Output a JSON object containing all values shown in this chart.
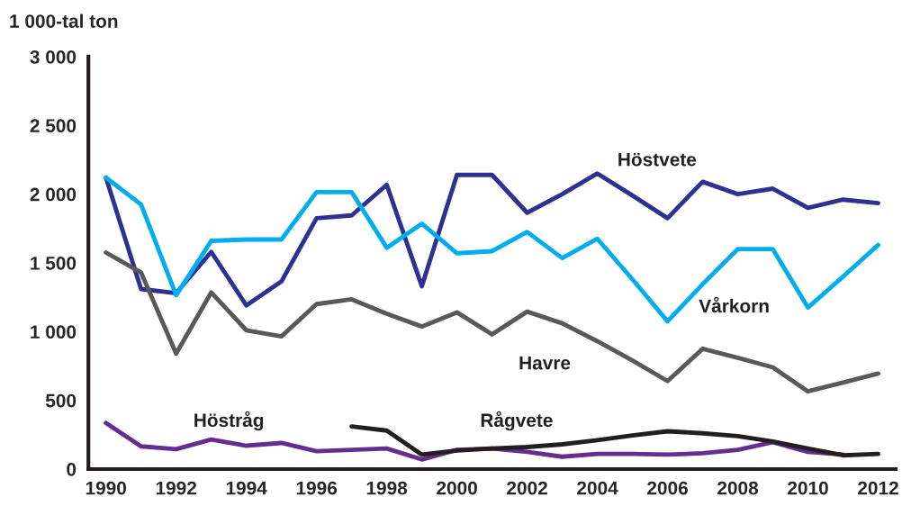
{
  "chart_data": {
    "type": "line",
    "ylabel": "1 000-tal ton",
    "x": [
      1990,
      1991,
      1992,
      1993,
      1994,
      1995,
      1996,
      1997,
      1998,
      1999,
      2000,
      2001,
      2002,
      2003,
      2004,
      2005,
      2006,
      2007,
      2008,
      2009,
      2010,
      2011,
      2012
    ],
    "series": [
      {
        "name": "Höstvete",
        "color": "#2e3192",
        "values": [
          2120,
          1310,
          1280,
          1580,
          1190,
          1365,
          1825,
          1845,
          2068,
          1330,
          2140,
          2140,
          1865,
          2000,
          2150,
          1990,
          1825,
          2090,
          2000,
          2040,
          1900,
          1960,
          1935
        ]
      },
      {
        "name": "Vårkorn",
        "color": "#00aeef",
        "values": [
          2120,
          1925,
          1265,
          1660,
          1670,
          1670,
          2015,
          2015,
          1610,
          1785,
          1570,
          1585,
          1725,
          1535,
          1675,
          1380,
          1075,
          1345,
          1600,
          1600,
          1175,
          1400,
          1630
        ]
      },
      {
        "name": "Havre",
        "color": "#58595b",
        "values": [
          1575,
          1430,
          840,
          1285,
          1010,
          965,
          1200,
          1235,
          1130,
          1037,
          1140,
          980,
          1145,
          1060,
          930,
          790,
          640,
          875,
          810,
          740,
          565,
          630,
          695
        ]
      },
      {
        "name": "Höstråg",
        "color": "#662d91",
        "values": [
          335,
          165,
          145,
          215,
          170,
          190,
          130,
          140,
          150,
          70,
          140,
          150,
          125,
          90,
          110,
          110,
          105,
          115,
          140,
          195,
          125,
          105,
          null
        ]
      },
      {
        "name": "Rågvete",
        "color": "#231f20",
        "values": [
          null,
          null,
          null,
          null,
          null,
          null,
          null,
          310,
          280,
          105,
          135,
          150,
          160,
          180,
          210,
          245,
          275,
          260,
          240,
          200,
          150,
          100,
          110
        ]
      }
    ],
    "xlim": [
      1989.5,
      2012.5
    ],
    "xticks": [
      1990,
      1992,
      1994,
      1996,
      1998,
      2000,
      2002,
      2004,
      2006,
      2008,
      2010,
      2012
    ],
    "ylim": [
      0,
      3000
    ],
    "yticks": [
      0,
      {
        "value": 500,
        "label": "500"
      },
      {
        "value": 1000,
        "label": "1 000"
      },
      {
        "value": 1500,
        "label": "1 500"
      },
      {
        "value": 2000,
        "label": "2 000"
      },
      {
        "value": 2500,
        "label": "2 500"
      },
      {
        "value": 3000,
        "label": "3 000"
      }
    ],
    "grid": false,
    "legend": false,
    "marker": "none",
    "line_style": "solid"
  }
}
